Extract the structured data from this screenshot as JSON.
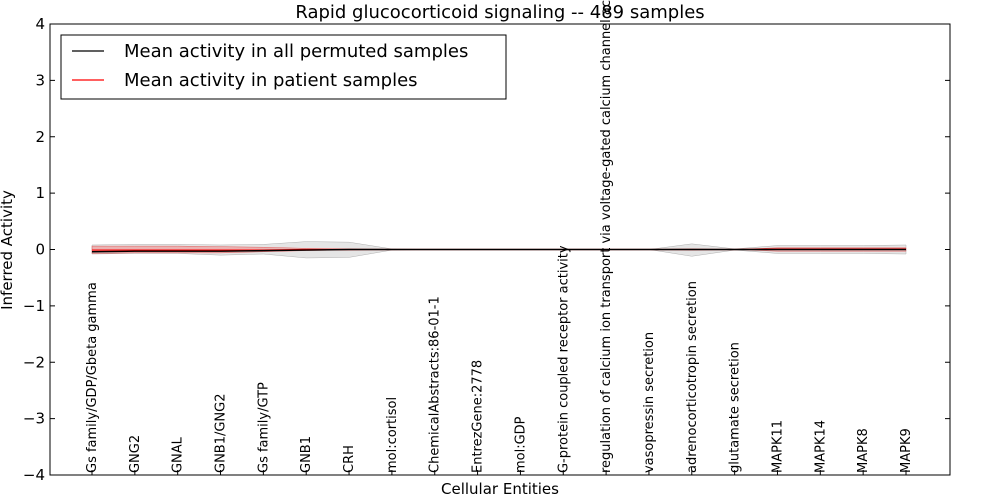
{
  "chart_data": {
    "type": "line",
    "title": "Rapid glucocorticoid signaling -- 489 samples",
    "xlabel": "Cellular Entities",
    "ylabel": "Inferred Activity",
    "ylim": [
      -4,
      4
    ],
    "yticks": [
      4,
      3,
      2,
      1,
      0,
      -1,
      -2,
      -3,
      -4
    ],
    "ytick_labels": [
      "4",
      "3",
      "2",
      "1",
      "0",
      "−1",
      "−2",
      "−3",
      "−4"
    ],
    "grid": false,
    "legend_position": "top-left",
    "categories": [
      "Gs family/GDP/Gbeta gamma",
      "GNG2",
      "GNAL",
      "GNB1/GNG2",
      "Gs family/GTP",
      "GNB1",
      "CRH",
      "mol:cortisol",
      "ChemicalAbstracts:86-01-1",
      "EntrezGene:2778",
      "mol:GDP",
      "G-protein coupled receptor activity",
      "regulation of calcium ion transport via voltage-gated calcium channel activity",
      "vasopressin secretion",
      "adrenocorticotropin secretion",
      "glutamate secretion",
      "MAPK11",
      "MAPK14",
      "MAPK8",
      "MAPK9"
    ],
    "series": [
      {
        "name": "Mean activity in all permuted samples",
        "color": "#000000",
        "values": [
          -0.04,
          -0.03,
          -0.03,
          -0.03,
          -0.02,
          -0.01,
          0,
          0,
          0,
          0,
          0,
          0,
          0,
          0,
          0,
          0,
          0,
          0,
          0,
          0
        ],
        "band_lower": [
          -0.08,
          -0.07,
          -0.07,
          -0.1,
          -0.08,
          -0.15,
          -0.14,
          -0.01,
          0,
          0,
          0,
          0,
          0,
          0,
          -0.12,
          -0.01,
          -0.07,
          -0.07,
          -0.07,
          -0.08
        ],
        "band_upper": [
          0.08,
          0.09,
          0.09,
          0.08,
          0.09,
          0.14,
          0.13,
          0.01,
          0,
          0,
          0,
          0,
          0,
          0,
          0.1,
          0.01,
          0.07,
          0.07,
          0.07,
          0.08
        ],
        "band_color": "#d0d0d0"
      },
      {
        "name": "Mean activity in patient samples",
        "color": "#ff0000",
        "values": [
          -0.01,
          -0.01,
          -0.01,
          -0.01,
          -0.01,
          0,
          0,
          0,
          0,
          0,
          0,
          0,
          0,
          0,
          0,
          0,
          0.01,
          0.01,
          0.01,
          0.01
        ],
        "band_lower": [
          -0.07,
          -0.06,
          -0.06,
          -0.06,
          -0.04,
          -0.02,
          -0.01,
          0,
          0,
          0,
          0,
          0,
          0,
          0,
          -0.01,
          0,
          -0.03,
          -0.03,
          -0.03,
          -0.03
        ],
        "band_upper": [
          0.06,
          0.06,
          0.06,
          0.05,
          0.04,
          0.02,
          0.01,
          0,
          0,
          0,
          0,
          0,
          0,
          0,
          0.01,
          0,
          0.03,
          0.03,
          0.03,
          0.03
        ],
        "band_color": "#f08080"
      }
    ]
  }
}
